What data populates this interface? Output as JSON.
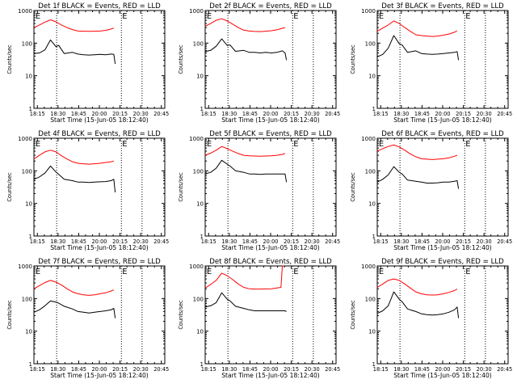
{
  "chart_data": [
    {
      "type": "line",
      "title": "Det 1f BLACK = Events, RED = LLD",
      "xlabel": "Start Time (15-Jun-05 18:12:40)",
      "ylabel": "Counts/sec",
      "x_tick_labels": [
        "18:15",
        "18:30",
        "18:45",
        "20:00",
        "20:15",
        "20:30",
        "20:45"
      ],
      "y_tick_labels": [
        "1",
        "10",
        "100",
        "1000"
      ],
      "ylim": [
        1,
        1000
      ],
      "xlim_minutes": [
        0,
        95
      ],
      "ylog": true,
      "markers": [
        {
          "label": "E",
          "x": 0.5
        },
        {
          "label": "E",
          "x": 63.5
        }
      ],
      "vlines": [
        16.5,
        63.5,
        78.5
      ],
      "series": [
        {
          "name": "BLACK = Events",
          "color": "#000000",
          "x": [
            0,
            4,
            8,
            12,
            16,
            18,
            22,
            28,
            32,
            36,
            40,
            44,
            48,
            52,
            56,
            58,
            59
          ],
          "y": [
            48,
            50,
            62,
            125,
            78,
            85,
            48,
            52,
            46,
            44,
            43,
            44,
            45,
            44,
            46,
            45,
            23
          ]
        },
        {
          "name": "RED = LLD",
          "color": "#ff0000",
          "x": [
            0,
            4,
            8,
            12,
            16,
            20,
            24,
            28,
            32,
            36,
            40,
            44,
            48,
            52,
            56,
            58
          ],
          "y": [
            300,
            360,
            440,
            520,
            450,
            360,
            300,
            260,
            235,
            232,
            230,
            232,
            235,
            245,
            270,
            290
          ]
        }
      ]
    },
    {
      "type": "line",
      "title": "Det 2f BLACK = Events, RED = LLD",
      "xlabel": "Start Time (15-Jun-05 18:12:40)",
      "ylabel": "Counts/sec",
      "x_tick_labels": [
        "18:15",
        "18:30",
        "18:45",
        "20:00",
        "20:15",
        "20:30",
        "20:45"
      ],
      "y_tick_labels": [
        "1",
        "10",
        "100",
        "1000"
      ],
      "ylim": [
        1,
        1000
      ],
      "xlim_minutes": [
        0,
        95
      ],
      "ylog": true,
      "markers": [
        {
          "label": "E",
          "x": 0.5
        },
        {
          "label": "E",
          "x": 63.5
        }
      ],
      "vlines": [
        16.5,
        63.5,
        78.5
      ],
      "series": [
        {
          "name": "BLACK = Events",
          "color": "#000000",
          "x": [
            0,
            4,
            8,
            12,
            16,
            18,
            22,
            28,
            32,
            36,
            40,
            44,
            48,
            52,
            56,
            58,
            59
          ],
          "y": [
            55,
            60,
            80,
            135,
            85,
            88,
            56,
            60,
            52,
            52,
            50,
            52,
            50,
            52,
            58,
            50,
            30
          ]
        },
        {
          "name": "RED = LLD",
          "color": "#ff0000",
          "x": [
            0,
            4,
            8,
            12,
            16,
            20,
            24,
            28,
            32,
            36,
            40,
            44,
            48,
            52,
            56,
            58
          ],
          "y": [
            330,
            400,
            500,
            560,
            480,
            380,
            300,
            250,
            235,
            228,
            225,
            232,
            240,
            255,
            285,
            300
          ]
        }
      ]
    },
    {
      "type": "line",
      "title": "Det 3f BLACK = Events, RED = LLD",
      "xlabel": "Start Time (15-Jun-05 18:12:40)",
      "ylabel": "Counts/sec",
      "x_tick_labels": [
        "18:15",
        "18:30",
        "18:45",
        "20:00",
        "20:15",
        "20:30",
        "20:45"
      ],
      "y_tick_labels": [
        "1",
        "10",
        "100",
        "1000"
      ],
      "ylim": [
        1,
        1000
      ],
      "xlim_minutes": [
        0,
        95
      ],
      "ylog": true,
      "markers": [
        {
          "label": "E",
          "x": 0.5
        },
        {
          "label": "E",
          "x": 63.5
        }
      ],
      "vlines": [
        16.5,
        63.5,
        78.5
      ],
      "series": [
        {
          "name": "BLACK = Events",
          "color": "#000000",
          "x": [
            0,
            4,
            8,
            12,
            16,
            18,
            22,
            28,
            32,
            36,
            40,
            44,
            48,
            52,
            56,
            58,
            59
          ],
          "y": [
            38,
            45,
            70,
            170,
            95,
            88,
            52,
            58,
            48,
            46,
            45,
            46,
            48,
            50,
            52,
            55,
            30
          ]
        },
        {
          "name": "RED = LLD",
          "color": "#ff0000",
          "x": [
            0,
            4,
            8,
            12,
            16,
            20,
            24,
            28,
            32,
            36,
            40,
            44,
            48,
            52,
            56,
            58
          ],
          "y": [
            230,
            290,
            360,
            480,
            400,
            300,
            230,
            180,
            170,
            165,
            160,
            165,
            175,
            190,
            215,
            240
          ]
        }
      ]
    },
    {
      "type": "line",
      "title": "Det 4f BLACK = Events, RED = LLD",
      "xlabel": "Start Time (15-Jun-05 18:12:40)",
      "ylabel": "Counts/sec",
      "x_tick_labels": [
        "18:15",
        "18:30",
        "18:45",
        "20:00",
        "20:15",
        "20:30",
        "20:45"
      ],
      "y_tick_labels": [
        "1",
        "10",
        "100",
        "1000"
      ],
      "ylim": [
        1,
        1000
      ],
      "xlim_minutes": [
        0,
        95
      ],
      "ylog": true,
      "markers": [
        {
          "label": "E",
          "x": 0.5
        },
        {
          "label": "E",
          "x": 63.5
        }
      ],
      "vlines": [
        16.5,
        63.5,
        78.5
      ],
      "series": [
        {
          "name": "BLACK = Events",
          "color": "#000000",
          "x": [
            0,
            4,
            8,
            12,
            16,
            18,
            22,
            28,
            32,
            36,
            40,
            44,
            48,
            52,
            56,
            58,
            59
          ],
          "y": [
            55,
            65,
            85,
            140,
            92,
            78,
            55,
            50,
            45,
            45,
            44,
            45,
            46,
            47,
            50,
            55,
            22
          ]
        },
        {
          "name": "RED = LLD",
          "color": "#ff0000",
          "x": [
            0,
            4,
            8,
            12,
            16,
            20,
            24,
            28,
            32,
            36,
            40,
            44,
            48,
            52,
            56,
            58
          ],
          "y": [
            230,
            300,
            380,
            430,
            380,
            290,
            230,
            190,
            170,
            165,
            160,
            165,
            170,
            180,
            190,
            200
          ]
        }
      ]
    },
    {
      "type": "line",
      "title": "Det 5f BLACK = Events, RED = LLD",
      "xlabel": "Start Time (15-Jun-05 18:12:40)",
      "ylabel": "Counts/sec",
      "x_tick_labels": [
        "18:15",
        "18:30",
        "18:45",
        "20:00",
        "20:15",
        "20:30",
        "20:45"
      ],
      "y_tick_labels": [
        "1",
        "10",
        "100",
        "1000"
      ],
      "ylim": [
        1,
        1000
      ],
      "xlim_minutes": [
        0,
        95
      ],
      "ylog": true,
      "markers": [
        {
          "label": "E",
          "x": 0.5
        },
        {
          "label": "E",
          "x": 63.5
        }
      ],
      "vlines": [
        16.5,
        63.5,
        78.5
      ],
      "series": [
        {
          "name": "BLACK = Events",
          "color": "#000000",
          "x": [
            0,
            4,
            8,
            12,
            16,
            18,
            22,
            28,
            32,
            36,
            40,
            44,
            48,
            52,
            56,
            58,
            59
          ],
          "y": [
            80,
            90,
            120,
            210,
            160,
            140,
            100,
            90,
            80,
            80,
            78,
            80,
            80,
            80,
            80,
            80,
            45
          ]
        },
        {
          "name": "RED = LLD",
          "color": "#ff0000",
          "x": [
            0,
            4,
            8,
            12,
            16,
            20,
            24,
            28,
            32,
            36,
            40,
            44,
            48,
            52,
            56,
            58
          ],
          "y": [
            300,
            350,
            430,
            560,
            480,
            400,
            340,
            300,
            290,
            285,
            280,
            285,
            290,
            300,
            320,
            340
          ]
        }
      ]
    },
    {
      "type": "line",
      "title": "Det 6f BLACK = Events, RED = LLD",
      "xlabel": "Start Time (15-Jun-05 18:12:40)",
      "ylabel": "Counts/sec",
      "x_tick_labels": [
        "18:15",
        "18:30",
        "18:45",
        "20:00",
        "20:15",
        "20:30",
        "20:45"
      ],
      "y_tick_labels": [
        "1",
        "10",
        "100",
        "1000"
      ],
      "ylim": [
        1,
        1000
      ],
      "xlim_minutes": [
        0,
        95
      ],
      "ylog": true,
      "markers": [
        {
          "label": "E",
          "x": 0.5
        },
        {
          "label": "E",
          "x": 63.5
        }
      ],
      "vlines": [
        16.5,
        63.5,
        78.5
      ],
      "series": [
        {
          "name": "BLACK = Events",
          "color": "#000000",
          "x": [
            0,
            4,
            8,
            12,
            16,
            18,
            22,
            28,
            32,
            36,
            40,
            44,
            48,
            52,
            56,
            58,
            59
          ],
          "y": [
            45,
            55,
            75,
            135,
            90,
            80,
            52,
            48,
            45,
            42,
            42,
            43,
            45,
            45,
            48,
            50,
            28
          ]
        },
        {
          "name": "RED = LLD",
          "color": "#ff0000",
          "x": [
            0,
            4,
            8,
            12,
            16,
            20,
            24,
            28,
            32,
            36,
            40,
            44,
            48,
            52,
            56,
            58
          ],
          "y": [
            400,
            480,
            560,
            620,
            540,
            430,
            330,
            270,
            235,
            228,
            222,
            228,
            235,
            250,
            280,
            300
          ]
        }
      ]
    },
    {
      "type": "line",
      "title": "Det 7f BLACK = Events, RED = LLD",
      "xlabel": "Start Time (15-Jun-05 18:12:40)",
      "ylabel": "Counts/sec",
      "x_tick_labels": [
        "18:15",
        "18:30",
        "18:45",
        "20:00",
        "20:15",
        "20:30",
        "20:45"
      ],
      "y_tick_labels": [
        "1",
        "10",
        "100",
        "1000"
      ],
      "ylim": [
        1,
        1000
      ],
      "xlim_minutes": [
        0,
        95
      ],
      "ylog": true,
      "markers": [
        {
          "label": "E",
          "x": 0.5
        },
        {
          "label": "E",
          "x": 63.5
        }
      ],
      "vlines": [
        16.5,
        63.5,
        78.5
      ],
      "series": [
        {
          "name": "BLACK = Events",
          "color": "#000000",
          "x": [
            0,
            4,
            8,
            12,
            16,
            18,
            22,
            28,
            32,
            36,
            40,
            44,
            48,
            52,
            56,
            58,
            59
          ],
          "y": [
            38,
            45,
            60,
            85,
            78,
            72,
            58,
            48,
            40,
            38,
            36,
            38,
            40,
            42,
            45,
            50,
            25
          ]
        },
        {
          "name": "RED = LLD",
          "color": "#ff0000",
          "x": [
            0,
            4,
            8,
            12,
            16,
            20,
            24,
            28,
            32,
            36,
            40,
            44,
            48,
            52,
            56,
            58
          ],
          "y": [
            200,
            250,
            310,
            360,
            320,
            260,
            200,
            160,
            140,
            130,
            125,
            130,
            140,
            150,
            170,
            185
          ]
        }
      ]
    },
    {
      "type": "line",
      "title": "Det 8f BLACK = Events, RED = LLD",
      "xlabel": "Start Time (15-Jun-05 18:12:40)",
      "ylabel": "Counts/sec",
      "x_tick_labels": [
        "18:15",
        "18:30",
        "18:45",
        "20:00",
        "20:15",
        "20:30",
        "20:45"
      ],
      "y_tick_labels": [
        "1",
        "10",
        "100",
        "1000"
      ],
      "ylim": [
        1,
        1000
      ],
      "xlim_minutes": [
        0,
        95
      ],
      "ylog": true,
      "markers": [
        {
          "label": "E",
          "x": 0.5
        },
        {
          "label": "E",
          "x": 63.5
        }
      ],
      "vlines": [
        16.5,
        63.5,
        78.5
      ],
      "series": [
        {
          "name": "BLACK = Events",
          "color": "#000000",
          "x": [
            0,
            4,
            8,
            12,
            16,
            18,
            22,
            28,
            32,
            36,
            40,
            44,
            48,
            52,
            56,
            58,
            59
          ],
          "y": [
            55,
            60,
            75,
            150,
            95,
            85,
            58,
            50,
            45,
            42,
            42,
            42,
            42,
            42,
            42,
            42,
            40
          ]
        },
        {
          "name": "RED = LLD",
          "color": "#ff0000",
          "x": [
            0,
            4,
            8,
            12,
            16,
            20,
            24,
            28,
            32,
            36,
            40,
            44,
            48,
            52,
            55,
            56,
            57
          ],
          "y": [
            210,
            270,
            360,
            600,
            500,
            380,
            280,
            220,
            200,
            195,
            195,
            198,
            200,
            210,
            220,
            1000,
            1000
          ]
        }
      ]
    },
    {
      "type": "line",
      "title": "Det 9f BLACK = Events, RED = LLD",
      "xlabel": "Start Time (15-Jun-05 18:12:40)",
      "ylabel": "Counts/sec",
      "x_tick_labels": [
        "18:15",
        "18:30",
        "18:45",
        "20:00",
        "20:15",
        "20:30",
        "20:45"
      ],
      "y_tick_labels": [
        "1",
        "10",
        "100",
        "1000"
      ],
      "ylim": [
        1,
        1000
      ],
      "xlim_minutes": [
        0,
        95
      ],
      "ylog": true,
      "markers": [
        {
          "label": "E",
          "x": 0.5
        },
        {
          "label": "E",
          "x": 63.5
        }
      ],
      "vlines": [
        16.5,
        63.5,
        78.5
      ],
      "series": [
        {
          "name": "BLACK = Events",
          "color": "#000000",
          "x": [
            0,
            4,
            8,
            12,
            16,
            18,
            22,
            28,
            32,
            36,
            40,
            44,
            48,
            52,
            56,
            58,
            59
          ],
          "y": [
            35,
            42,
            60,
            160,
            95,
            80,
            48,
            40,
            34,
            32,
            31,
            32,
            34,
            38,
            45,
            55,
            25
          ]
        },
        {
          "name": "RED = LLD",
          "color": "#ff0000",
          "x": [
            0,
            4,
            8,
            12,
            16,
            20,
            24,
            28,
            32,
            36,
            40,
            44,
            48,
            52,
            56,
            58
          ],
          "y": [
            220,
            280,
            360,
            400,
            360,
            280,
            210,
            160,
            140,
            130,
            128,
            130,
            140,
            155,
            175,
            195
          ]
        }
      ]
    }
  ]
}
